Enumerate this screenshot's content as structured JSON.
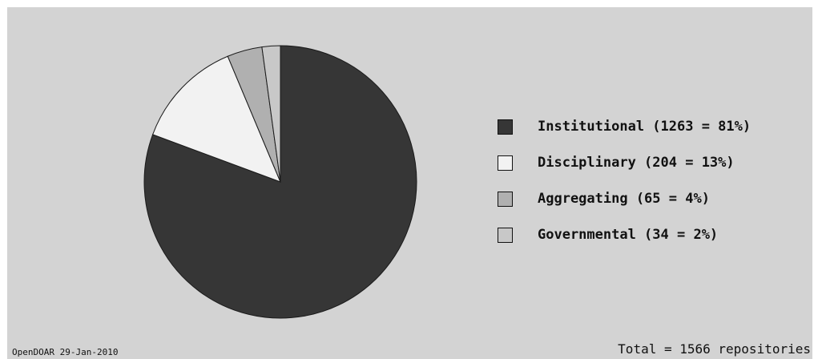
{
  "chart_data": {
    "type": "pie",
    "slices": [
      {
        "label": "Institutional (1263 = 81%)",
        "value": 1263,
        "color": "#363636"
      },
      {
        "label": "Disciplinary (204 = 13%)",
        "value": 204,
        "color": "#f2f2f2"
      },
      {
        "label": "Aggregating (65 = 4%)",
        "value": 65,
        "color": "#b0b0b0"
      },
      {
        "label": "Governmental (34 = 2%)",
        "value": 34,
        "color": "#c8c8c8"
      }
    ],
    "legend_position": "right"
  },
  "footer": {
    "source": "OpenDOAR 29-Jan-2010",
    "total": "Total = 1566 repositories"
  }
}
